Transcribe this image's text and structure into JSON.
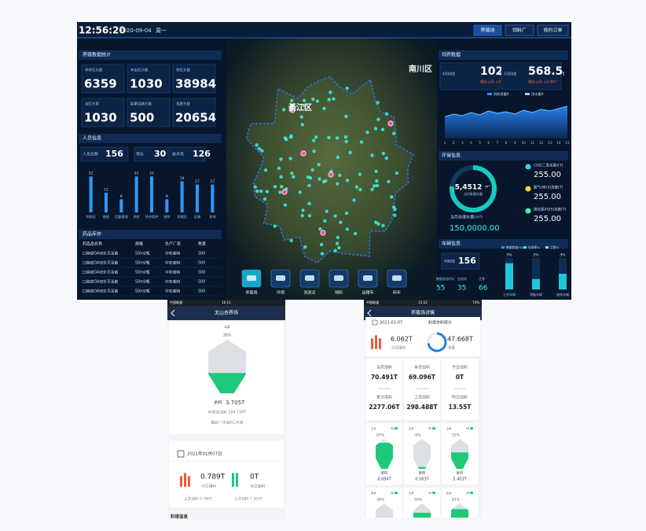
{
  "dashboard": {
    "time": "12:56:20",
    "date": "2020-09-04",
    "weekday": "周一",
    "tabs": [
      "养殖场",
      "饲料厂",
      "预约订单"
    ],
    "map_labels": [
      "南川区",
      "綦江区"
    ],
    "stats_title": "养殖数据统计",
    "stats": [
      {
        "label": "年存栏头数",
        "value": "6359"
      },
      {
        "label": "年出栏头数",
        "value": "1030"
      },
      {
        "label": "存栏头数",
        "value": "38984"
      },
      {
        "label": "出栏头数",
        "value": "1030"
      },
      {
        "label": "能繁母猪头数",
        "value": "500"
      },
      {
        "label": "育肥头数",
        "value": "20654"
      }
    ],
    "people_title": "人员信息",
    "people": [
      {
        "label": "人员总数",
        "value": "156"
      },
      {
        "label": "场长",
        "value": "30"
      },
      {
        "label": "技术员",
        "value": "126"
      }
    ],
    "staff_chart": {
      "type": "bar",
      "categories": [
        "饲养员",
        "兽医",
        "后勤管理",
        "质检",
        "环评保护",
        "采购",
        "养殖员",
        "运输",
        "其他"
      ],
      "values": [
        22,
        12,
        8,
        22,
        22,
        8,
        19,
        17,
        17
      ],
      "ylim": [
        0,
        25
      ]
    },
    "drug_title": "药品库存",
    "drug_headers": [
      "药品品名称",
      "规格",
      "生产厂家",
      "数量"
    ],
    "drug_rows": [
      [
        "口蹄疫OA双价灭活苗",
        "50ml/瓶",
        "中农威特",
        "500"
      ],
      [
        "口蹄疫OA双价灭活苗",
        "50ml/瓶",
        "中农威特",
        "500"
      ],
      [
        "口蹄疫OA双价灭活苗",
        "50ml/瓶",
        "中农威特",
        "500"
      ],
      [
        "口蹄疫OA双价灭活苗",
        "50ml/瓶",
        "中农威特",
        "500"
      ],
      [
        "口蹄疫OA双价灭活苗",
        "50ml/瓶",
        "中农威特",
        "500"
      ]
    ],
    "feed_title": "饲养数据",
    "feed": [
      {
        "label": "本日饲料总量",
        "value": "102",
        "unit": "t",
        "sub": "相比上月 +0.987"
      },
      {
        "label": "今日用水量",
        "value": "568.5",
        "unit": "t",
        "sub": "相比上月 +0.987"
      }
    ],
    "feed_chart": {
      "type": "area",
      "legend": [
        "饲料用量/t",
        "用水量/t"
      ],
      "categories": [
        "1",
        "2",
        "3",
        "4",
        "5",
        "6",
        "7",
        "8",
        "9",
        "10",
        "11",
        "12",
        "13",
        "14",
        "15"
      ],
      "values": [
        55,
        62,
        58,
        66,
        60,
        70,
        64,
        68,
        62,
        72,
        66,
        74,
        70,
        76,
        82
      ],
      "ylim": [
        0,
        100
      ]
    },
    "env_title": "环保信息",
    "env_value": "5,4512",
    "env_unit": "m³",
    "env_caption": "当月处理水量",
    "env_total_label": "当月处理水量(m³)",
    "env_total": "150,0000.00",
    "gas": [
      {
        "label": "CO2(二氧化碳)(T)",
        "value": "255.00"
      },
      {
        "label": "氨气(NH3)浓度(T)",
        "value": "255.00"
      },
      {
        "label": "硫化氢(H2S)浓度(T)",
        "value": "255.00"
      }
    ],
    "vehicle_title": "车辆信息",
    "vehicle_total_label": "车辆总数",
    "vehicle_total": "156",
    "vehicle_stats": [
      {
        "label": "数据状态(%)",
        "value": "55"
      },
      {
        "label": "在线车",
        "value": "35"
      },
      {
        "label": "正常",
        "value": "66"
      }
    ],
    "vehicle_chart": {
      "type": "bar",
      "legend": [
        "数据状态(%)",
        "在线率%",
        "正常%"
      ],
      "categories": [
        "工作车辆",
        "预备车辆",
        "维修车辆"
      ],
      "values": [
        5,
        2,
        3
      ],
      "value_labels": [
        "5%",
        "2%",
        "3%"
      ],
      "ylim": [
        0,
        6
      ]
    },
    "nav": [
      "养殖场",
      "环保",
      "洗消点",
      "饲料",
      "运猪车",
      "料车"
    ]
  },
  "phone1": {
    "carrier": "中国联通",
    "clock": "16:11",
    "title": "太山自养场",
    "bin": {
      "name": "4#",
      "fill": 38,
      "fill_label": "38%"
    },
    "remain_label": "余料",
    "remain": "3.705T",
    "line1": "料塔总加料 184.749T",
    "line2": "最后一次加料2天前",
    "date": "2021年01月07日",
    "today_use": "0.789T",
    "today_use_label": "今日用料",
    "today_add": "0T",
    "today_add_label": "今日加料",
    "last_use": "上次加料 0.780T",
    "last_add": "上次加料 7.304T",
    "footer": "料塔信息"
  },
  "phone2": {
    "carrier": "中国联通",
    "clock": "15:52",
    "battery": "74%",
    "title": "养殖场详情",
    "date": "2021-01-07",
    "section": "料塔余料统计",
    "today_use": "6.062T",
    "today_use_label": "今日用料",
    "total": "47.668T",
    "total_label": "总量",
    "grid": [
      [
        {
          "label": "当月用料",
          "value": "70.491T"
        },
        {
          "label": "累计用料",
          "value": "2277.06T"
        }
      ],
      [
        {
          "label": "本月加料",
          "value": "69.096T"
        },
        {
          "label": "上月加料",
          "value": "298.488T"
        }
      ],
      [
        {
          "label": "今日加料",
          "value": "0T"
        },
        {
          "label": "昨日加料",
          "value": "13.55T"
        }
      ]
    ],
    "remain_label": "余料",
    "bins": [
      {
        "name": "1#",
        "fill": 87,
        "fill_label": "87%",
        "remain": "8.694T"
      },
      {
        "name": "2#",
        "fill": 6,
        "fill_label": "6%",
        "remain": "0.563T"
      },
      {
        "name": "3#",
        "fill": 55,
        "fill_label": "55%",
        "remain": "5.403T"
      },
      {
        "name": "4#",
        "fill": 38,
        "fill_label": "38%"
      },
      {
        "name": "5#",
        "fill": 69,
        "fill_label": "69%"
      },
      {
        "name": "6#",
        "fill": 81,
        "fill_label": "81%"
      }
    ]
  }
}
